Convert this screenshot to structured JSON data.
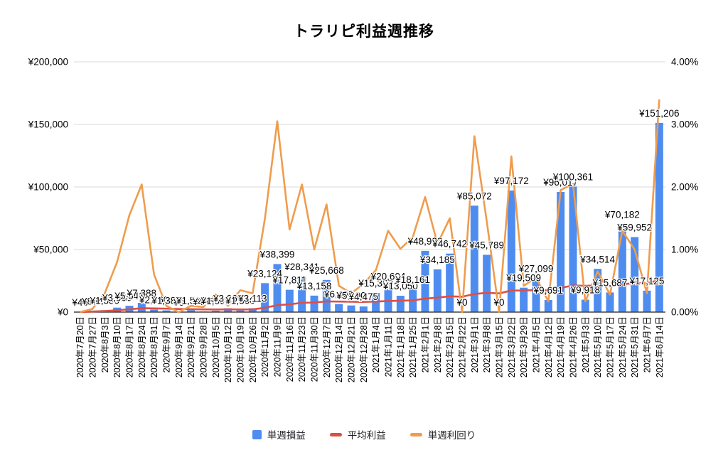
{
  "title": "トラリピ利益週推移",
  "legend": {
    "items": [
      {
        "label": "単週損益",
        "color": "#4e8cf0",
        "marker": "bar"
      },
      {
        "label": "平均利益",
        "color": "#dd4f45",
        "marker": "line"
      },
      {
        "label": "単週利回り",
        "color": "#ef9c4d",
        "marker": "line"
      }
    ]
  },
  "chart_data": {
    "type": "combo (bar + 2 lines)",
    "title": "トラリピ利益週推移",
    "grid": true,
    "legend_position": "bottom",
    "left_axis": {
      "min": 0,
      "max": 200000,
      "tick_labels": [
        "¥0",
        "¥50,000",
        "¥100,000",
        "¥150,000",
        "¥200,000"
      ]
    },
    "right_axis": {
      "min": 0,
      "max": 4,
      "tick_labels": [
        "0.00%",
        "1.00%",
        "2.00%",
        "3.00%",
        "4.00%"
      ]
    },
    "categories": [
      "2020年7月20日",
      "2020年7月27日",
      "2020年8月3日",
      "2020年8月10日",
      "2020年8月17日",
      "2020年8月24日",
      "2020年8月31日",
      "2020年9月7日",
      "2020年9月14日",
      "2020年9月21日",
      "2020年9月28日",
      "2020年10月5日",
      "2020年10月12日",
      "2020年10月19日",
      "2020年10月26日",
      "2020年11月2日",
      "2020年11月9日",
      "2020年11月16日",
      "2020年11月23日",
      "2020年11月30日",
      "2020年12月7日",
      "2020年12月14日",
      "2020年12月21日",
      "2020年12月28日",
      "2021年1月4日",
      "2021年1月11日",
      "2021年1月18日",
      "2021年1月25日",
      "2021年2月1日",
      "2021年2月8日",
      "2021年2月15日",
      "2021年2月22日",
      "2021年3月1日",
      "2021年3月8日",
      "2021年3月15日",
      "2021年3月22日",
      "2021年3月29日",
      "2021年4月5日",
      "2021年4月12日",
      "2021年4月19日",
      "2021年4月26日",
      "2021年5月3日",
      "2021年5月10日",
      "2021年5月17日",
      "2021年5月24日",
      "2021年5月31日",
      "2021年6月7日",
      "2021年6月14日"
    ],
    "series": [
      {
        "name": "単週損益",
        "type": "bar",
        "axis": "left",
        "color": "#4e8cf0",
        "values": [
          45,
          864,
          1530,
          3560,
          5040,
          7388,
          2060,
          1380,
          0,
          1560,
          445,
          1060,
          3060,
          1360,
          3113,
          23124,
          38399,
          17811,
          28341,
          13158,
          25668,
          6400,
          5300,
          4475,
          15300,
          20604,
          13050,
          18161,
          48922,
          34185,
          46742,
          0,
          85072,
          45789,
          0,
          97172,
          19509,
          27099,
          9691,
          96017,
          100361,
          9918,
          34514,
          15687,
          70182,
          59952,
          17125,
          151206
        ]
      },
      {
        "name": "平均利益",
        "type": "line",
        "axis": "left",
        "color": "#dd4f45",
        "values": [
          45,
          455,
          813,
          1500,
          2208,
          3071,
          2927,
          2733,
          2430,
          2343,
          2170,
          2078,
          2153,
          2097,
          2164,
          3474,
          5529,
          6211,
          7376,
          7665,
          8522,
          8426,
          8290,
          8131,
          8418,
          8886,
          9041,
          9366,
          10730,
          11512,
          12649,
          12253,
          14460,
          15381,
          14942,
          17226,
          17288,
          17546,
          17344,
          19311,
          21288,
          21017,
          21331,
          21203,
          22291,
          23110,
          22983,
          25654
        ]
      },
      {
        "name": "単週利回り",
        "type": "line",
        "axis": "right",
        "color": "#ef9c4d",
        "values": [
          0.0,
          0.05,
          0.3,
          0.8,
          1.55,
          2.04,
          0.6,
          0.1,
          0.0,
          0.1,
          0.08,
          0.28,
          0.1,
          0.35,
          0.3,
          1.5,
          3.05,
          1.32,
          2.04,
          1.0,
          1.72,
          0.42,
          0.3,
          0.45,
          0.67,
          1.3,
          1.01,
          1.2,
          1.84,
          1.09,
          1.5,
          0.0,
          2.81,
          1.45,
          0.0,
          2.49,
          0.42,
          0.55,
          0.17,
          1.95,
          2.05,
          0.17,
          0.65,
          0.28,
          1.3,
          1.0,
          0.3,
          3.4
        ]
      }
    ]
  }
}
